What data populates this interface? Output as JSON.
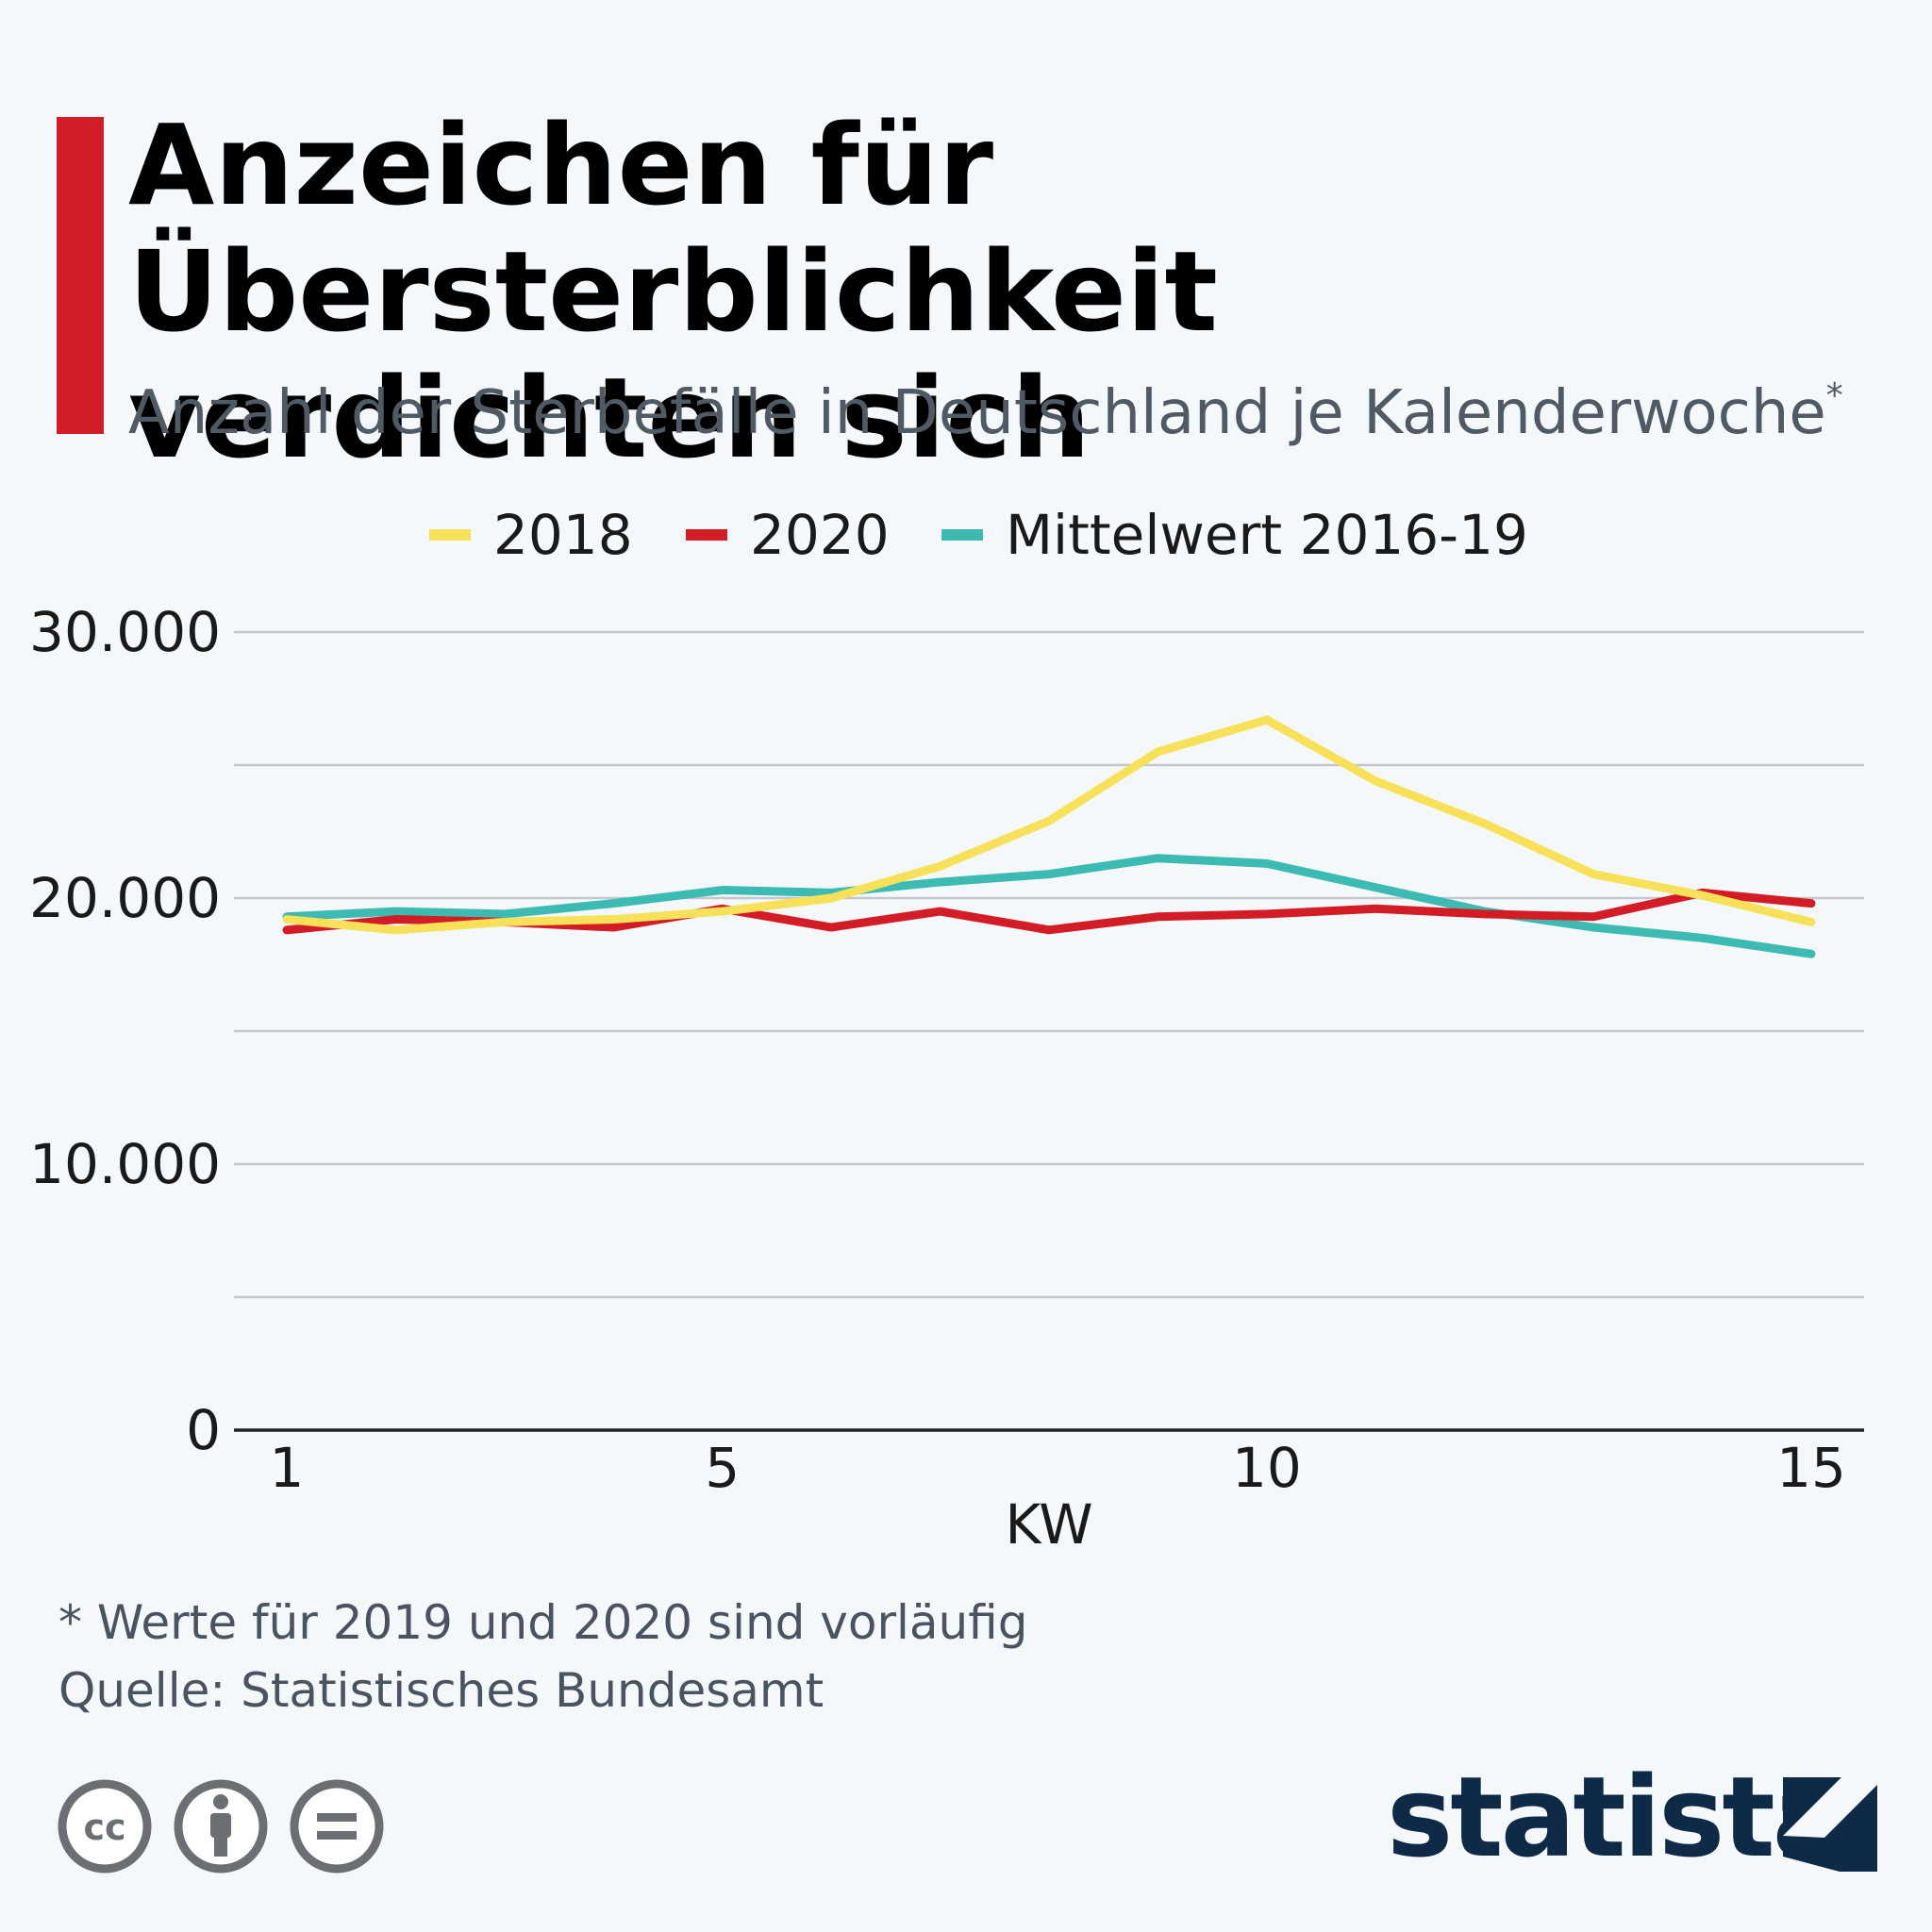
{
  "header": {
    "title": "Anzeichen für Übersterblichkeit verdichten sich",
    "subtitle": "Anzahl der Sterbefälle in Deutschland je Kalenderwoche",
    "subtitle_marker": "*"
  },
  "footer": {
    "footnote": "* Werte für 2019 und 2020 sind vorläufig",
    "source": "Quelle: Statistisches Bundesamt",
    "brand": "statista",
    "license_icons": [
      "cc-icon",
      "by-person-icon",
      "nd-equals-icon"
    ]
  },
  "colors": {
    "accent": "#d31d26",
    "s2018": "#f7e05a",
    "s2020": "#d31d26",
    "mean": "#3dbbb3",
    "brand": "#0f2a47"
  },
  "chart_data": {
    "type": "line",
    "title": "Anzeichen für Übersterblichkeit verdichten sich",
    "xlabel": "KW",
    "ylabel": "",
    "x": [
      1,
      2,
      3,
      4,
      5,
      6,
      7,
      8,
      9,
      10,
      11,
      12,
      13,
      14,
      15
    ],
    "xticks": [
      1,
      5,
      10,
      15
    ],
    "xtick_labels": [
      "1",
      "5",
      "10",
      "15"
    ],
    "xlim": [
      0.5,
      15.5
    ],
    "ylim": [
      0,
      30000
    ],
    "yticks": [
      0,
      10000,
      20000,
      30000
    ],
    "ytick_labels": [
      "0",
      "10.000",
      "20.000",
      "30.000"
    ],
    "gridlines": [
      5000,
      10000,
      15000,
      20000,
      25000,
      30000
    ],
    "legend_position": "top-center",
    "series": [
      {
        "name": "2018",
        "color": "#f7e05a",
        "values": [
          19200,
          18800,
          19100,
          19200,
          19500,
          20000,
          21200,
          22900,
          25500,
          26700,
          24400,
          22800,
          20900,
          20100,
          19100
        ]
      },
      {
        "name": "2020",
        "color": "#d31d26",
        "values": [
          18800,
          19200,
          19100,
          18900,
          19600,
          18900,
          19500,
          18800,
          19300,
          19400,
          19600,
          19400,
          19300,
          20200,
          19800
        ]
      },
      {
        "name": "Mittelwert 2016-19",
        "color": "#3dbbb3",
        "values": [
          19300,
          19500,
          19400,
          19800,
          20300,
          20200,
          20600,
          20900,
          21500,
          21300,
          20400,
          19500,
          18900,
          18500,
          17900
        ]
      }
    ]
  }
}
